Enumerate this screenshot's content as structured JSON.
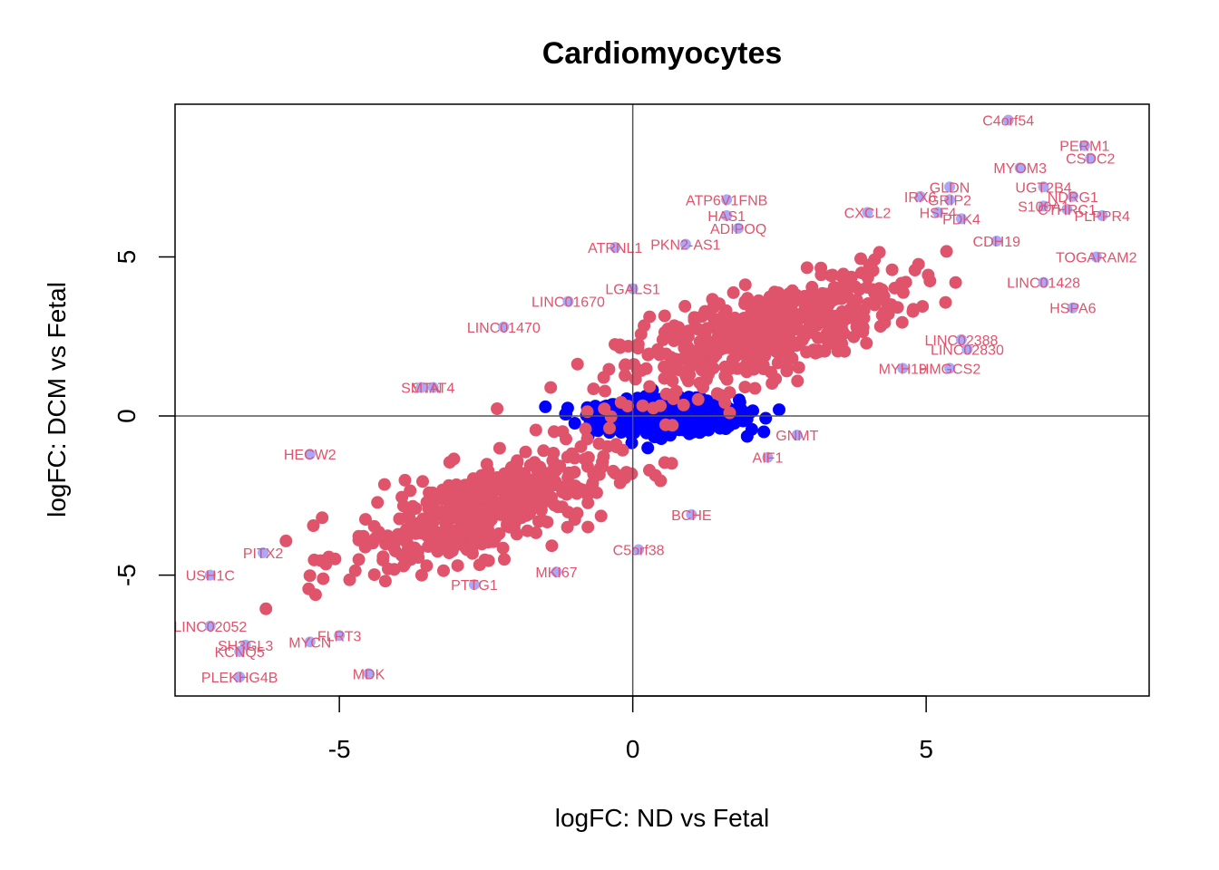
{
  "chart_data": {
    "type": "scatter",
    "title": "Cardiomyocytes",
    "xlabel": "logFC: ND vs Fetal",
    "ylabel": "logFC: DCM vs Fetal",
    "xlim": [
      -7.8,
      8.8
    ],
    "ylim": [
      -8.8,
      9.8
    ],
    "xticks": [
      -5,
      0,
      5
    ],
    "yticks": [
      -5,
      0,
      5
    ],
    "reference_lines": {
      "x": 0,
      "y": 0
    },
    "colors": {
      "nonsig_points": "#0000ff",
      "sig_points": "#a8a8ff",
      "labels": "#df536b",
      "axes": "#000000",
      "reference_lines": "#555555"
    },
    "clusters": [
      {
        "name": "center-nonsignificant",
        "x_center": 0.6,
        "y_center": 0,
        "x_spread": 1.2,
        "y_spread": 0.5,
        "n": 700,
        "color_key": "nonsig_points"
      },
      {
        "name": "up-up",
        "x_center": 2.2,
        "y_center": 2.6,
        "x_spread": 2.4,
        "y_spread": 1.4,
        "n": 500,
        "color_key": "labels"
      },
      {
        "name": "down-down",
        "x_center": -2.6,
        "y_center": -3.0,
        "x_spread": 2.2,
        "y_spread": 1.4,
        "n": 450,
        "color_key": "labels"
      }
    ],
    "labeled_points": [
      {
        "gene": "C4orf54",
        "x": 6.4,
        "y": 9.3
      },
      {
        "gene": "PERM1",
        "x": 7.7,
        "y": 8.5
      },
      {
        "gene": "CSDC2",
        "x": 7.8,
        "y": 8.1
      },
      {
        "gene": "MYOM3",
        "x": 6.6,
        "y": 7.8
      },
      {
        "gene": "UGT2B4",
        "x": 7.0,
        "y": 7.2
      },
      {
        "gene": "NDRG1",
        "x": 7.5,
        "y": 6.9
      },
      {
        "gene": "S100A1",
        "x": 7.0,
        "y": 6.6
      },
      {
        "gene": "CTHRC1",
        "x": 7.4,
        "y": 6.5
      },
      {
        "gene": "PLPPR4",
        "x": 8.0,
        "y": 6.3
      },
      {
        "gene": "GLDN",
        "x": 5.4,
        "y": 7.2
      },
      {
        "gene": "IRX6",
        "x": 4.9,
        "y": 6.9
      },
      {
        "gene": "GRIP2",
        "x": 5.4,
        "y": 6.8
      },
      {
        "gene": "HSF4",
        "x": 5.2,
        "y": 6.4
      },
      {
        "gene": "PDK4",
        "x": 5.6,
        "y": 6.2
      },
      {
        "gene": "CXCL2",
        "x": 4.0,
        "y": 6.4
      },
      {
        "gene": "CDH19",
        "x": 6.2,
        "y": 5.5
      },
      {
        "gene": "TOGARAM2",
        "x": 7.9,
        "y": 5.0
      },
      {
        "gene": "LINC01428",
        "x": 7.0,
        "y": 4.2
      },
      {
        "gene": "HSPA6",
        "x": 7.5,
        "y": 3.4
      },
      {
        "gene": "ATP6V1FNB",
        "x": 1.6,
        "y": 6.8
      },
      {
        "gene": "HAS1",
        "x": 1.6,
        "y": 6.3
      },
      {
        "gene": "ADIPOQ",
        "x": 1.8,
        "y": 5.9
      },
      {
        "gene": "ATRNL1",
        "x": -0.3,
        "y": 5.3
      },
      {
        "gene": "PKN2-AS1",
        "x": 0.9,
        "y": 5.4
      },
      {
        "gene": "LGALS1",
        "x": 0.0,
        "y": 4.0
      },
      {
        "gene": "LINC01670",
        "x": -1.1,
        "y": 3.6
      },
      {
        "gene": "LINC01470",
        "x": -2.2,
        "y": 2.8
      },
      {
        "gene": "HMGCS2",
        "x": 5.4,
        "y": 1.5
      },
      {
        "gene": "MYH19",
        "x": 4.6,
        "y": 1.5
      },
      {
        "gene": "LINC02388",
        "x": 5.6,
        "y": 2.4
      },
      {
        "gene": "LINC02830",
        "x": 5.7,
        "y": 2.1
      },
      {
        "gene": "STAT4",
        "x": -3.4,
        "y": 0.9
      },
      {
        "gene": "SMTN",
        "x": -3.6,
        "y": 0.9
      },
      {
        "gene": "GNMT",
        "x": 2.8,
        "y": -0.6
      },
      {
        "gene": "AIF1",
        "x": 2.3,
        "y": -1.3
      },
      {
        "gene": "BCHE",
        "x": 1.0,
        "y": -3.1
      },
      {
        "gene": "C5orf38",
        "x": 0.1,
        "y": -4.2
      },
      {
        "gene": "MKI67",
        "x": -1.3,
        "y": -4.9
      },
      {
        "gene": "PTTG1",
        "x": -2.7,
        "y": -5.3
      },
      {
        "gene": "HECW2",
        "x": -5.5,
        "y": -1.2
      },
      {
        "gene": "PITX2",
        "x": -6.3,
        "y": -4.3
      },
      {
        "gene": "USH1C",
        "x": -7.2,
        "y": -5.0
      },
      {
        "gene": "FLRT3",
        "x": -5.0,
        "y": -6.9
      },
      {
        "gene": "MYCN",
        "x": -5.5,
        "y": -7.1
      },
      {
        "gene": "SH3GL3",
        "x": -6.6,
        "y": -7.2
      },
      {
        "gene": "KCNQ5",
        "x": -6.7,
        "y": -7.4
      },
      {
        "gene": "LINC02052",
        "x": -7.2,
        "y": -6.6
      },
      {
        "gene": "MDK",
        "x": -4.5,
        "y": -8.1
      },
      {
        "gene": "PLEKHG4B",
        "x": -6.7,
        "y": -8.2
      }
    ]
  }
}
